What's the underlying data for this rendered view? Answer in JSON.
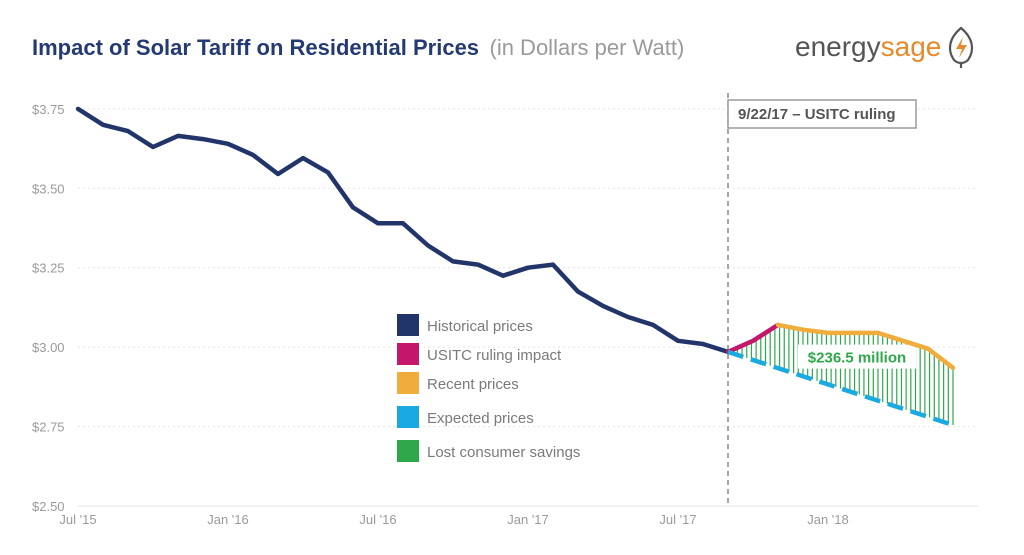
{
  "header": {
    "title": "Impact of Solar Tariff on Residential Prices",
    "subtitle": "(in Dollars per Watt)"
  },
  "logo": {
    "text_energy": "energy",
    "text_sage": "sage",
    "icon": "leaf-lightning-icon"
  },
  "colors": {
    "historical": "#22356b",
    "ruling": "#c4166b",
    "recent": "#f0ad3c",
    "expected": "#1aa9e1",
    "savings": "#2ea84a",
    "grid": "#e4e4e4",
    "axis_text": "#9a9a9a"
  },
  "chart_data": {
    "type": "line",
    "title": "Impact of Solar Tariff on Residential Prices",
    "subtitle": "(in Dollars per Watt)",
    "xlabel": "",
    "ylabel": "",
    "x_ticks": [
      "Jul '15",
      "Jan '16",
      "Jul '16",
      "Jan '17",
      "Jul '17",
      "Jan '18"
    ],
    "x_tick_months": [
      "2015-07",
      "2016-01",
      "2016-07",
      "2017-01",
      "2017-07",
      "2018-01"
    ],
    "y_ticks": [
      "$2.50",
      "$2.75",
      "$3.00",
      "$3.25",
      "$3.50",
      "$3.75"
    ],
    "ylim": [
      2.5,
      3.8
    ],
    "xlim": [
      "2015-07",
      "2018-07"
    ],
    "grid": true,
    "legend_position": "center",
    "series": [
      {
        "name": "Historical prices",
        "style": "solid",
        "points": [
          {
            "x": "2015-07",
            "y": 3.75
          },
          {
            "x": "2015-08",
            "y": 3.7
          },
          {
            "x": "2015-09",
            "y": 3.68
          },
          {
            "x": "2015-10",
            "y": 3.63
          },
          {
            "x": "2015-11",
            "y": 3.665
          },
          {
            "x": "2015-12",
            "y": 3.655
          },
          {
            "x": "2016-01",
            "y": 3.64
          },
          {
            "x": "2016-02",
            "y": 3.605
          },
          {
            "x": "2016-03",
            "y": 3.545
          },
          {
            "x": "2016-04",
            "y": 3.595
          },
          {
            "x": "2016-05",
            "y": 3.55
          },
          {
            "x": "2016-06",
            "y": 3.44
          },
          {
            "x": "2016-07",
            "y": 3.39
          },
          {
            "x": "2016-08",
            "y": 3.39
          },
          {
            "x": "2016-09",
            "y": 3.32
          },
          {
            "x": "2016-10",
            "y": 3.27
          },
          {
            "x": "2016-11",
            "y": 3.26
          },
          {
            "x": "2016-12",
            "y": 3.225
          },
          {
            "x": "2017-01",
            "y": 3.25
          },
          {
            "x": "2017-02",
            "y": 3.26
          },
          {
            "x": "2017-03",
            "y": 3.175
          },
          {
            "x": "2017-04",
            "y": 3.13
          },
          {
            "x": "2017-05",
            "y": 3.095
          },
          {
            "x": "2017-06",
            "y": 3.07
          },
          {
            "x": "2017-07",
            "y": 3.02
          },
          {
            "x": "2017-08",
            "y": 3.01
          },
          {
            "x": "2017-09",
            "y": 2.985
          }
        ]
      },
      {
        "name": "USITC ruling impact",
        "style": "solid",
        "points": [
          {
            "x": "2017-09",
            "y": 2.985
          },
          {
            "x": "2017-10",
            "y": 3.02
          },
          {
            "x": "2017-11",
            "y": 3.07
          }
        ]
      },
      {
        "name": "Recent prices",
        "style": "solid",
        "points": [
          {
            "x": "2017-11",
            "y": 3.07
          },
          {
            "x": "2017-12",
            "y": 3.055
          },
          {
            "x": "2018-01",
            "y": 3.045
          },
          {
            "x": "2018-02",
            "y": 3.045
          },
          {
            "x": "2018-03",
            "y": 3.045
          },
          {
            "x": "2018-04",
            "y": 3.02
          },
          {
            "x": "2018-05",
            "y": 2.995
          },
          {
            "x": "2018-06",
            "y": 2.935
          }
        ]
      },
      {
        "name": "Expected prices",
        "style": "dashed",
        "points": [
          {
            "x": "2017-09",
            "y": 2.985
          },
          {
            "x": "2018-06",
            "y": 2.755
          }
        ]
      },
      {
        "name": "Lost consumer savings",
        "style": "hatched-area",
        "points": []
      }
    ],
    "annotations": [
      {
        "x": "2017-09",
        "label": "9/22/17 – USITC ruling",
        "style": "dashed-vertical-line"
      },
      {
        "label": "$236.5 million",
        "region": "lost-consumer-savings"
      }
    ]
  }
}
